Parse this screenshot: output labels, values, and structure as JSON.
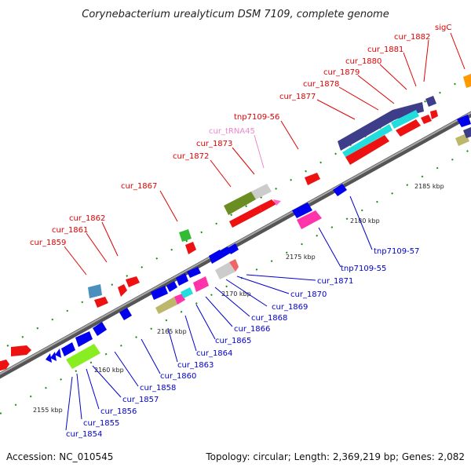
{
  "title": "Corynebacterium urealyticum DSM 7109, complete genome",
  "accession": "Accession: NC_010545",
  "topology": "Topology: circular; Length: 2,369,219 bp; Genes: 2,082",
  "scale_labels": [
    "2155 kbp",
    "2160 kbp",
    "2165 kbp",
    "2170 kbp",
    "2175 kbp",
    "2180 kbp",
    "2185 kbp"
  ],
  "labels_top": [
    "cur_1859",
    "cur_1861",
    "cur_1862",
    "cur_1867",
    "cur_1872",
    "cur_1873",
    "cur_tRNA45",
    "tnp7109-56",
    "cur_1877",
    "cur_1878",
    "cur_1879",
    "cur_1880",
    "cur_1881",
    "cur_1882",
    "sigC"
  ],
  "labels_bottom": [
    "cur_1854",
    "cur_1855",
    "cur_1856",
    "cur_1857",
    "cur_1858",
    "cur_1860",
    "cur_1863",
    "cur_1864",
    "cur_1865",
    "cur_1866",
    "cur_1868",
    "cur_1869",
    "cur_1870",
    "cur_1871",
    "tnp7109-55",
    "tnp7109-57"
  ],
  "colors": {
    "top_label": "#e00000",
    "trna_label": "#ee88cc",
    "bottom_label": "#0000cc",
    "backbone": "#888888",
    "tick": "#1a7a1a"
  }
}
